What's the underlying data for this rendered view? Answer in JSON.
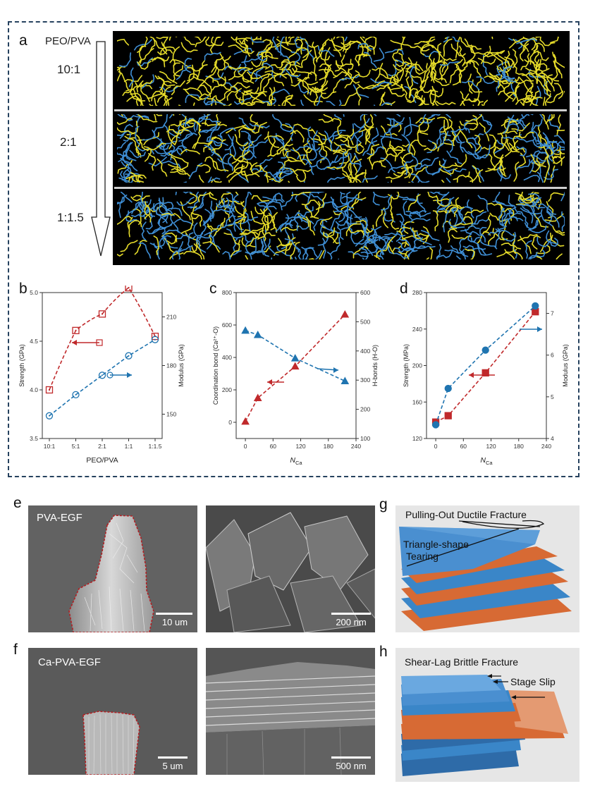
{
  "panels": {
    "a": "a",
    "b": "b",
    "c": "c",
    "d": "d",
    "e": "e",
    "f": "f",
    "g": "g",
    "h": "h"
  },
  "panel_a": {
    "header": "PEO/PVA",
    "ratios": [
      "10:1",
      "2:1",
      "1:1.5"
    ]
  },
  "colors": {
    "yellow": "#e6dc2a",
    "blue": "#3f8fd6",
    "red": "#c0292b",
    "teal": "#1f74b0",
    "orange": "#dc6f3c",
    "layer_blue": "#3a86c8",
    "frame": "#26425f"
  },
  "chart_data": [
    {
      "id": "b",
      "type": "line",
      "xlabel": "PEO/PVA",
      "categories": [
        "10:1",
        "5:1",
        "2:1",
        "1:1",
        "1:1.5"
      ],
      "ylabel_left": "Strength (GPa)",
      "ylim_left": [
        3.5,
        5.0
      ],
      "yticks_left": [
        "3.5",
        "4.0",
        "4.5",
        "5.0"
      ],
      "ylabel_right": "Modulus (GPa)",
      "ylim_right": [
        135,
        225
      ],
      "yticks_right": [
        "150",
        "180",
        "210"
      ],
      "series": [
        {
          "axis": "left",
          "marker": "square",
          "color": "#c0292b",
          "values": [
            4.0,
            4.61,
            4.78,
            5.05,
            4.55
          ]
        },
        {
          "axis": "right",
          "marker": "circle",
          "color": "#1f74b0",
          "values": [
            149,
            162,
            174,
            186,
            196
          ]
        }
      ]
    },
    {
      "id": "c",
      "type": "line",
      "xlabel": "N",
      "xlabel_sub": "Ca",
      "xlim": [
        -20,
        240
      ],
      "xticks": [
        "0",
        "60",
        "120",
        "180",
        "240"
      ],
      "ylabel_left": "Coordination bond (Ca²⁺-O)",
      "ylim_left": [
        -100,
        800
      ],
      "yticks_left": [
        "0",
        "200",
        "400",
        "600",
        "800"
      ],
      "ylabel_right": "H-bonds (H-O)",
      "ylim_right": [
        100,
        600
      ],
      "yticks_right": [
        "100",
        "200",
        "300",
        "400",
        "500",
        "600"
      ],
      "series": [
        {
          "axis": "left",
          "marker": "triangle",
          "color": "#c0292b",
          "x": [
            0,
            27,
            108,
            216
          ],
          "values": [
            5,
            150,
            345,
            665
          ]
        },
        {
          "axis": "right",
          "marker": "triangle",
          "color": "#1f74b0",
          "x": [
            0,
            27,
            108,
            216
          ],
          "values": [
            470,
            455,
            375,
            297
          ]
        }
      ]
    },
    {
      "id": "d",
      "type": "line",
      "xlabel": "N",
      "xlabel_sub": "Ca",
      "xlim": [
        -20,
        240
      ],
      "xticks": [
        "0",
        "60",
        "120",
        "180",
        "240"
      ],
      "ylabel_left": "Strength (MPa)",
      "ylim_left": [
        120,
        280
      ],
      "yticks_left": [
        "120",
        "160",
        "200",
        "240",
        "280"
      ],
      "ylabel_right": "Modulus (GPa)",
      "ylim_right": [
        4,
        7.5
      ],
      "yticks_right": [
        "4",
        "5",
        "6",
        "7"
      ],
      "series": [
        {
          "axis": "left",
          "marker": "square",
          "color": "#c0292b",
          "x": [
            0,
            27,
            108,
            216
          ],
          "values": [
            138,
            145,
            192,
            259
          ]
        },
        {
          "axis": "right",
          "marker": "circle",
          "color": "#1f74b0",
          "x": [
            0,
            27,
            108,
            216
          ],
          "values": [
            4.33,
            5.2,
            6.12,
            7.18
          ]
        }
      ]
    }
  ],
  "panel_e": {
    "label": "PVA-EGF",
    "scale_left": "10 um",
    "scale_right": "200 nm"
  },
  "panel_f": {
    "label": "Ca-PVA-EGF",
    "scale_left": "5 um",
    "scale_right": "500 nm"
  },
  "panel_g": {
    "title": "Pulling-Out Ductile Fracture",
    "label_line1": "Triangle-shape",
    "label_line2": "Tearing"
  },
  "panel_h": {
    "title": "Shear-Lag Brittle Fracture",
    "label": "Stage Slip"
  }
}
